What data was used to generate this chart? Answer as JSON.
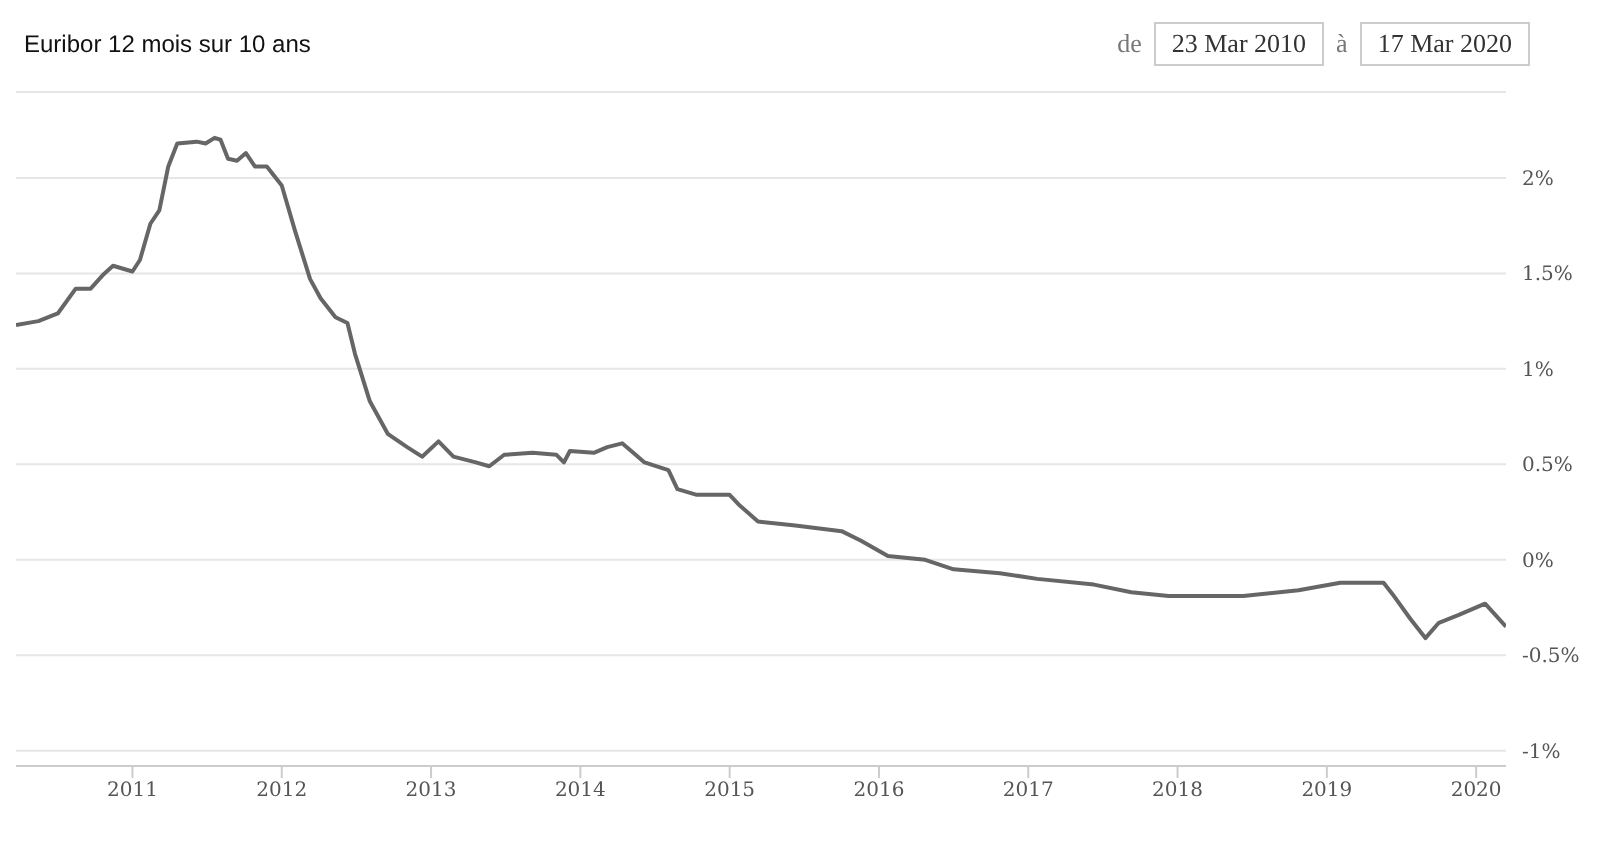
{
  "chart_data": {
    "type": "line",
    "title": "Euribor 12 mois sur 10 ans",
    "annotations": [
      "de",
      "23 Mar 2010",
      "à",
      "17 Mar 2020"
    ],
    "x": [
      2010.22,
      2010.37,
      2010.5,
      2010.62,
      2010.72,
      2010.8,
      2010.87,
      2011.0,
      2011.05,
      2011.12,
      2011.18,
      2011.24,
      2011.3,
      2011.43,
      2011.49,
      2011.55,
      2011.59,
      2011.64,
      2011.7,
      2011.76,
      2011.82,
      2011.9,
      2012.0,
      2012.09,
      2012.19,
      2012.26,
      2012.36,
      2012.44,
      2012.49,
      2012.59,
      2012.71,
      2012.84,
      2012.94,
      2013.05,
      2013.15,
      2013.3,
      2013.39,
      2013.49,
      2013.68,
      2013.84,
      2013.89,
      2013.93,
      2014.09,
      2014.18,
      2014.28,
      2014.37,
      2014.43,
      2014.59,
      2014.65,
      2014.78,
      2015.0,
      2015.06,
      2015.19,
      2015.44,
      2015.75,
      2015.88,
      2016.06,
      2016.31,
      2016.5,
      2016.81,
      2017.06,
      2017.44,
      2017.69,
      2017.94,
      2018.44,
      2018.81,
      2019.09,
      2019.38,
      2019.44,
      2019.56,
      2019.66,
      2019.75,
      2019.88,
      2020.06,
      2020.13,
      2020.2
    ],
    "series": [
      {
        "color": "#666666",
        "values": [
          1.23,
          1.25,
          1.29,
          1.42,
          1.42,
          1.49,
          1.54,
          1.51,
          1.57,
          1.76,
          1.83,
          2.06,
          2.18,
          2.19,
          2.18,
          2.21,
          2.2,
          2.1,
          2.09,
          2.13,
          2.06,
          2.06,
          1.96,
          1.72,
          1.47,
          1.37,
          1.27,
          1.24,
          1.08,
          0.83,
          0.66,
          0.59,
          0.54,
          0.62,
          0.54,
          0.51,
          0.49,
          0.55,
          0.56,
          0.55,
          0.51,
          0.57,
          0.56,
          0.59,
          0.61,
          0.55,
          0.51,
          0.47,
          0.37,
          0.34,
          0.34,
          0.29,
          0.2,
          0.18,
          0.15,
          0.1,
          0.02,
          0.0,
          -0.05,
          -0.07,
          -0.1,
          -0.13,
          -0.17,
          -0.19,
          -0.19,
          -0.16,
          -0.12,
          -0.12,
          -0.18,
          -0.31,
          -0.41,
          -0.33,
          -0.29,
          -0.23,
          -0.29,
          -0.35
        ]
      }
    ],
    "xlim": [
      2010.22,
      2020.2
    ],
    "xticks": [
      2011,
      2012,
      2013,
      2014,
      2015,
      2016,
      2017,
      2018,
      2019,
      2020
    ],
    "ylim": [
      -1.08,
      2.45
    ],
    "yticks": [
      {
        "value": -1,
        "label": "-1%"
      },
      {
        "value": -0.5,
        "label": "-0.5%"
      },
      {
        "value": 0,
        "label": "0%"
      },
      {
        "value": 0.5,
        "label": "0.5%"
      },
      {
        "value": 1,
        "label": "1%"
      },
      {
        "value": 1.5,
        "label": "1.5%"
      },
      {
        "value": 2,
        "label": "2%"
      }
    ],
    "grid": "y",
    "legend": false,
    "marker": "none",
    "line_style": "solid"
  }
}
